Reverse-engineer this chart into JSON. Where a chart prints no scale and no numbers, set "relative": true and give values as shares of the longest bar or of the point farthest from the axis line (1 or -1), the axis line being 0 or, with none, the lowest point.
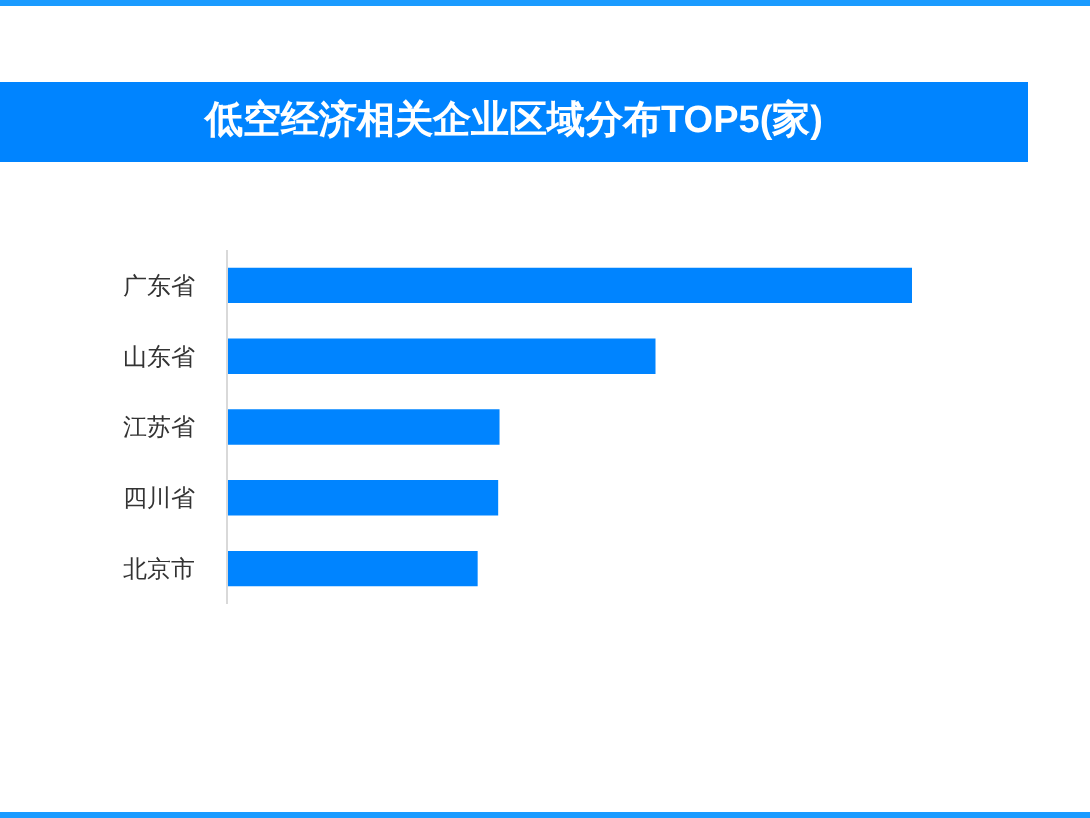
{
  "chart_data": {
    "type": "bar",
    "title": "低空经济相关企业区域分布TOP5(家)",
    "orientation": "horizontal",
    "relative": true,
    "categories": [
      "广东省",
      "山东省",
      "江苏省",
      "四川省",
      "北京市"
    ],
    "values": [
      1,
      0.625,
      0.397,
      0.395,
      0.365
    ],
    "color": "#0084ff"
  }
}
